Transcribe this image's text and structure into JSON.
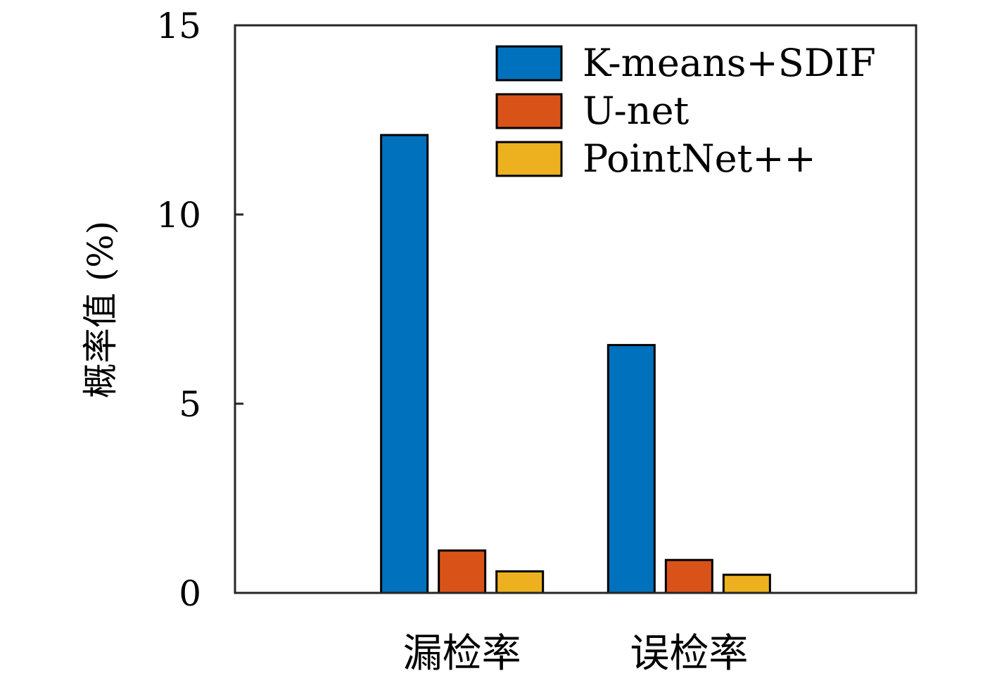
{
  "chart_data": {
    "type": "bar",
    "categories": [
      "漏检率",
      "误检率"
    ],
    "series": [
      {
        "name": "K-means+SDIF",
        "values": [
          12.1,
          6.55
        ],
        "color": "#0072BD"
      },
      {
        "name": "U-net",
        "values": [
          1.12,
          0.87
        ],
        "color": "#D95319"
      },
      {
        "name": "PointNet++",
        "values": [
          0.57,
          0.48
        ],
        "color": "#EDB120"
      }
    ],
    "ylabel": "概率值 (%)",
    "xlabel": "",
    "ylim": [
      0,
      15
    ],
    "yticks": [
      "0",
      "5",
      "10",
      "15"
    ],
    "grid": false,
    "legend_position": "top-right"
  }
}
